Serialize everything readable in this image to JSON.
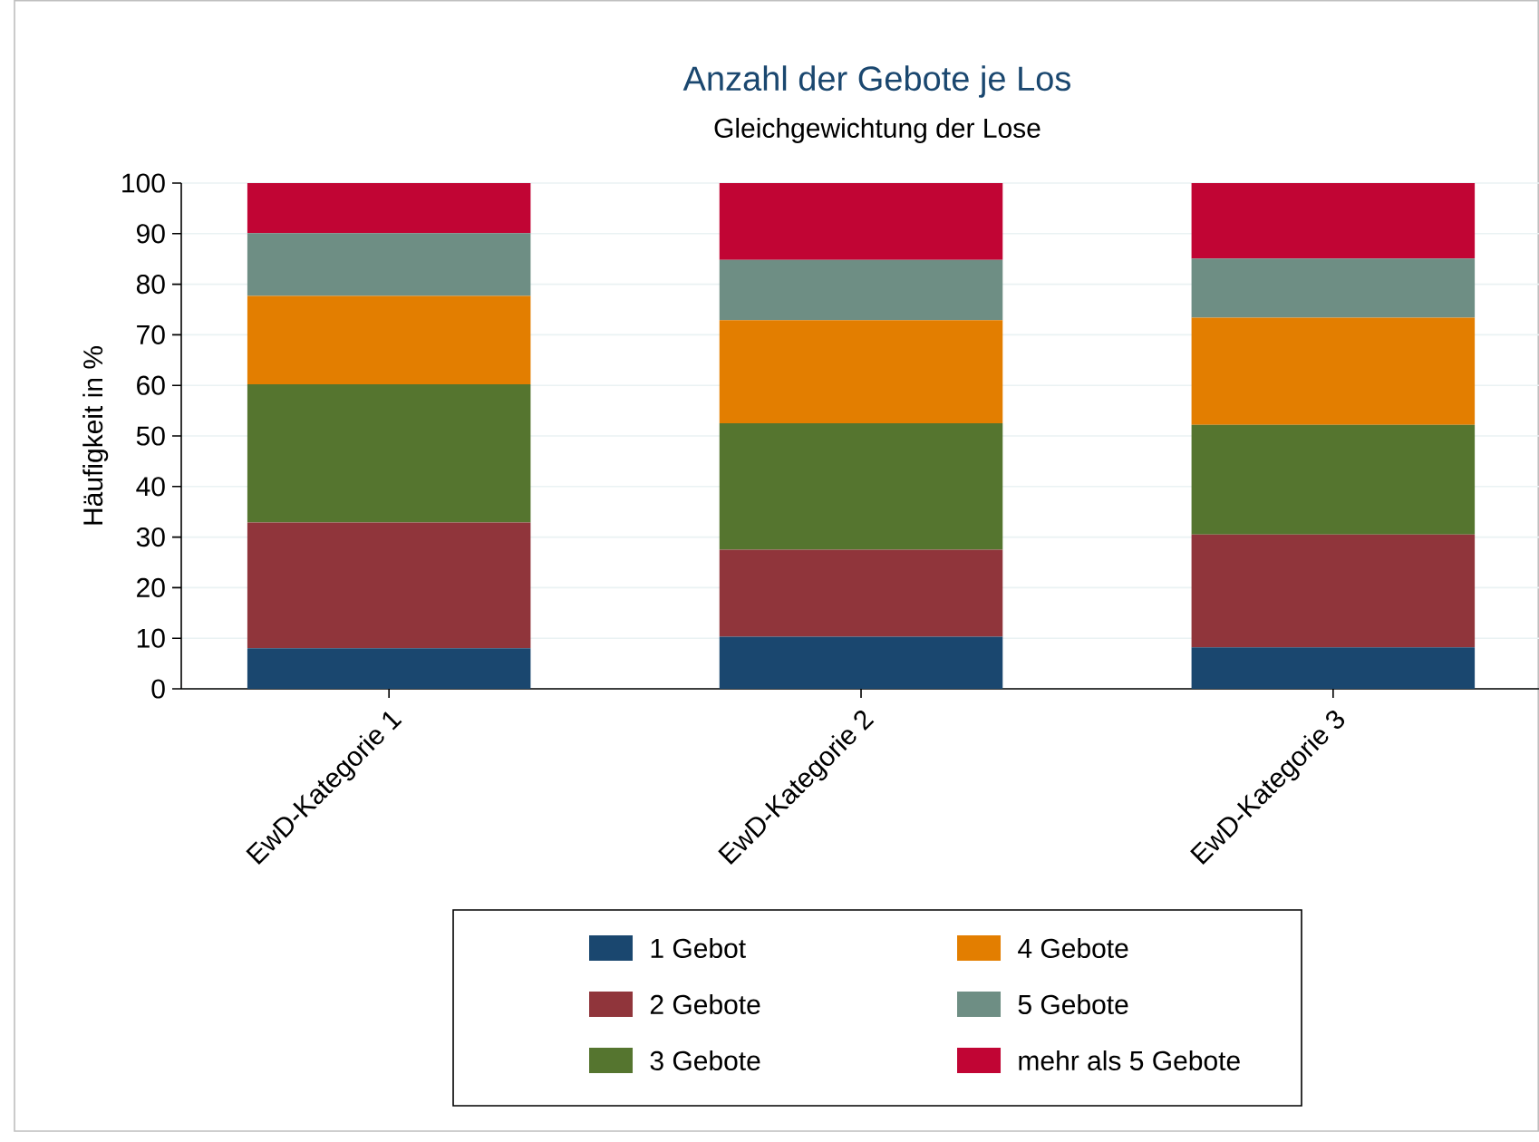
{
  "chart_data": {
    "type": "bar",
    "stacked": true,
    "title": "Anzahl der Gebote je Los",
    "subtitle": "Gleichgewichtung der Lose",
    "ylabel": "Häufigkeit in %",
    "categories": [
      "EwD-Kategorie 1",
      "EwD-Kategorie 2",
      "EwD-Kategorie 3"
    ],
    "series": [
      {
        "name": "1 Gebot",
        "color": "#1a476f",
        "values": [
          8.0,
          10.3,
          8.2
        ]
      },
      {
        "name": "2 Gebote",
        "color": "#90353b",
        "values": [
          24.9,
          17.2,
          22.3
        ]
      },
      {
        "name": "3 Gebote",
        "color": "#55752f",
        "values": [
          27.3,
          25.0,
          21.7
        ]
      },
      {
        "name": "4 Gebote",
        "color": "#e37e00",
        "values": [
          17.5,
          20.4,
          21.2
        ]
      },
      {
        "name": "5 Gebote",
        "color": "#6e8e84",
        "values": [
          12.4,
          11.9,
          11.7
        ]
      },
      {
        "name": "mehr als 5 Gebote",
        "color": "#c10534",
        "values": [
          9.9,
          15.2,
          14.9
        ]
      }
    ],
    "ylim": [
      0,
      100
    ],
    "yticks": [
      0,
      10,
      20,
      30,
      40,
      50,
      60,
      70,
      80,
      90,
      100
    ],
    "grid": "y",
    "legend": "bottom"
  }
}
